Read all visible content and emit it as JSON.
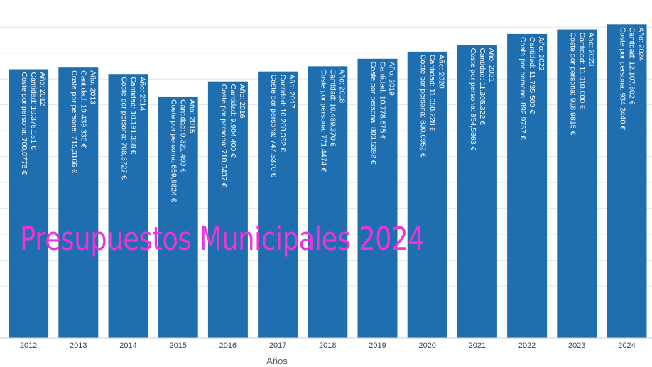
{
  "watermark_text": "Presupuestos Municipales 2024",
  "chart_data": {
    "type": "bar",
    "xlabel": "Años",
    "ylabel": "",
    "ylim": [
      0,
      12500000
    ],
    "bar_color": "#1f6fb0",
    "watermark_color": "#ee33dd",
    "label_prefixes": {
      "year": "Año:",
      "amount": "Cantidad:",
      "per_person": "Coste por persona:"
    },
    "categories": [
      "2012",
      "2013",
      "2014",
      "2015",
      "2016",
      "2017",
      "2018",
      "2019",
      "2020",
      "2021",
      "2022",
      "2023",
      "2024"
    ],
    "values": [
      10375151,
      10439330,
      10191358,
      9321499,
      9904400,
      10288352,
      10489370,
      10778675,
      11050228,
      11305322,
      11735500,
      11910000,
      12107802
    ],
    "bar_labels": [
      {
        "year": "2012",
        "amount": "10.375.151 €",
        "per_person": "700,0776 €"
      },
      {
        "year": "2013",
        "amount": "10.439.330 €",
        "per_person": "715,3166 €"
      },
      {
        "year": "2014",
        "amount": "10.191.358 €",
        "per_person": "708,3727 €"
      },
      {
        "year": "2015",
        "amount": "9.321.499 €",
        "per_person": "659,8824 €"
      },
      {
        "year": "2016",
        "amount": "9.904.400 €",
        "per_person": "710,0437 €"
      },
      {
        "year": "2017",
        "amount": "10.288.352 €",
        "per_person": "747,5370 €"
      },
      {
        "year": "2018",
        "amount": "10.489.370 €",
        "per_person": "771,4474 €"
      },
      {
        "year": "2019",
        "amount": "10.778.675 €",
        "per_person": "803,5392 €"
      },
      {
        "year": "2020",
        "amount": "11.050.228 €",
        "per_person": "830,0952 €"
      },
      {
        "year": "2021",
        "amount": "11.305.322 €",
        "per_person": "854,5863 €"
      },
      {
        "year": "2022",
        "amount": "11.735.500 €",
        "per_person": "892,9767 €"
      },
      {
        "year": "2023",
        "amount": "11.910.000 €",
        "per_person": "918,9815 €"
      },
      {
        "year": "2024",
        "amount": "12.107.802 €",
        "per_person": "934,2440 €"
      }
    ]
  }
}
